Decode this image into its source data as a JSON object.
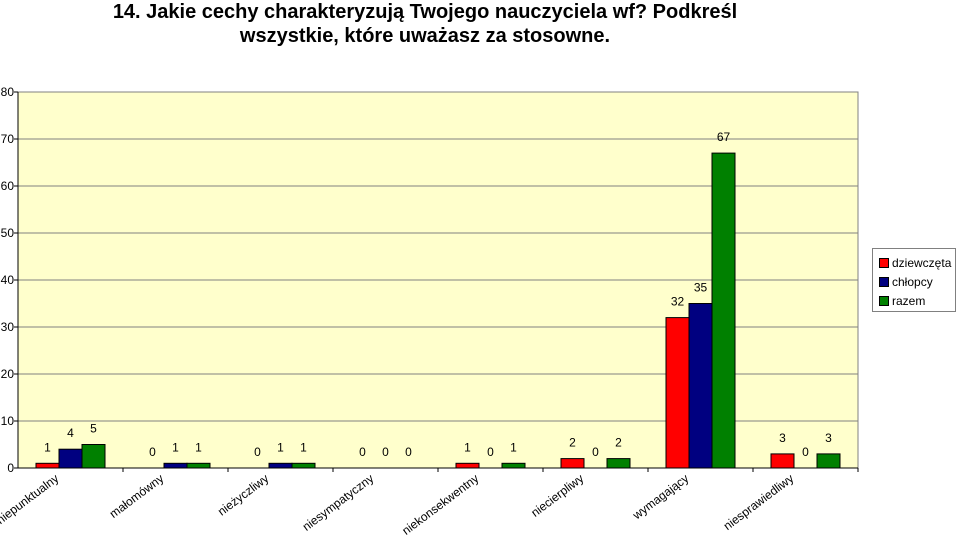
{
  "chart_data": {
    "type": "bar",
    "title_line1": "14. Jakie cechy charakteryzują Twojego nauczyciela wf? Podkreśl",
    "title_line2": "wszystkie, które uważasz za stosowne.",
    "categories": [
      "niepunktualny",
      "małomówny",
      "nieżyczliwy",
      "niesympatyczny",
      "niekonsekwentny",
      "niecierpliwy",
      "wymagający",
      "niesprawiedliwy"
    ],
    "series": [
      {
        "name": "dziewczęta",
        "color": "#ff0000",
        "values": [
          1,
          0,
          0,
          0,
          1,
          2,
          32,
          3
        ]
      },
      {
        "name": "chłopcy",
        "color": "#000080",
        "values": [
          4,
          1,
          1,
          0,
          0,
          0,
          35,
          0
        ]
      },
      {
        "name": "razem",
        "color": "#008000",
        "values": [
          5,
          1,
          1,
          0,
          1,
          2,
          67,
          3
        ]
      }
    ],
    "ylim": [
      0,
      80
    ],
    "ytick_step": 10,
    "grid": true,
    "plot_background": "#ffffcc",
    "legend_position": "right"
  }
}
